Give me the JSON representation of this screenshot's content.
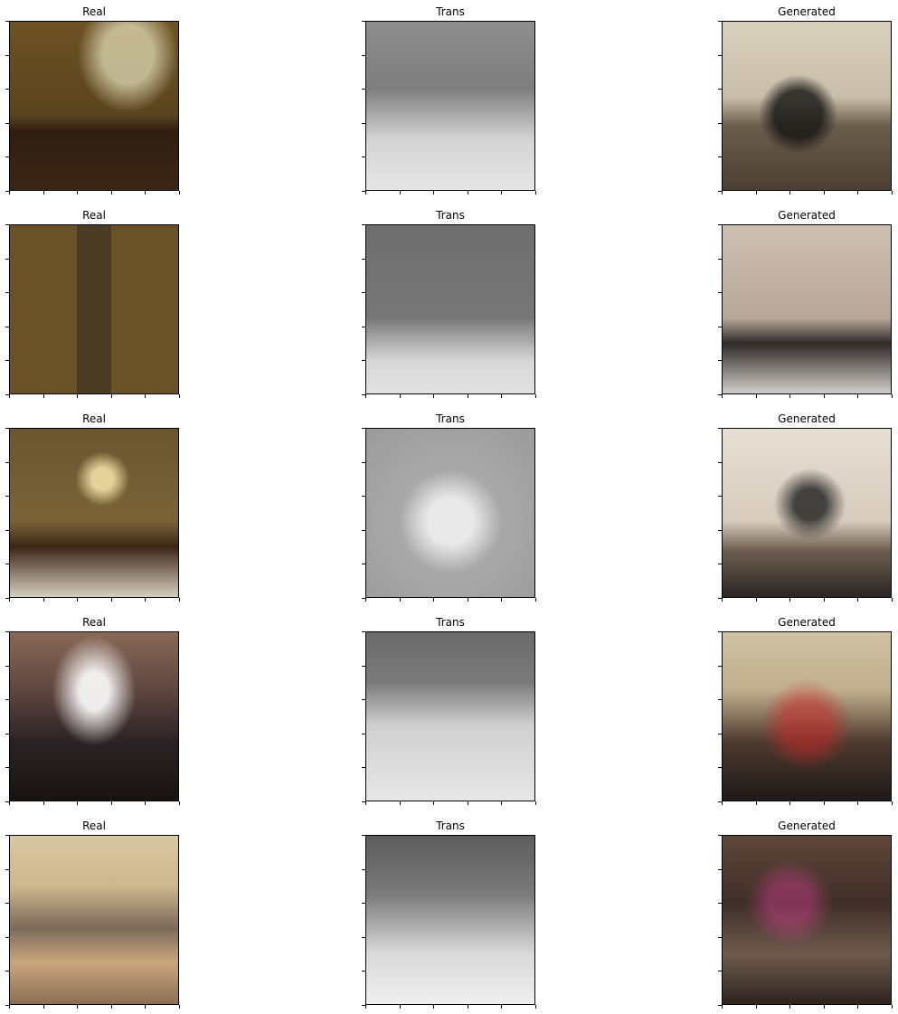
{
  "labels": {
    "real": "Real",
    "trans": "Trans",
    "generated": "Generated"
  },
  "grid": {
    "rows": 5,
    "columns": [
      "real",
      "trans",
      "generated"
    ]
  },
  "colors": {
    "tick": "#000000"
  }
}
